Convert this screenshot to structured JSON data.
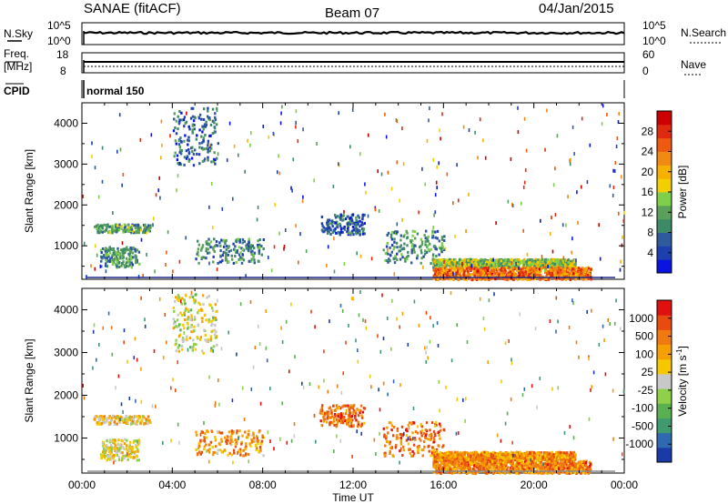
{
  "header": {
    "title": "SANAE (fitACF)",
    "beam": "Beam 07",
    "date": "04/Jan/2015"
  },
  "panels": {
    "nsky_label": "N.Sky",
    "nsky_ticks": [
      "10^5",
      "10^0"
    ],
    "nsearch_label": "N.Search",
    "nsearch_ticks": [
      "10^5",
      "10^0"
    ],
    "freq_label": "Freq.",
    "freq_unit": "[MHz]",
    "freq_ticks": [
      "18",
      "8"
    ],
    "nave_label": "Nave",
    "nave_ticks": [
      "60",
      "0"
    ],
    "cpid_label": "CPID",
    "cpid_value": "normal 150"
  },
  "chart_data": [
    {
      "type": "heatmap",
      "name": "power",
      "ylabel": "Slant Range [km]",
      "ylim": [
        180,
        4500
      ],
      "yticks": [
        1000,
        2000,
        3000,
        4000
      ],
      "xlim_hours": [
        0,
        24
      ],
      "colorbar": {
        "label": "Power [dB]",
        "range": [
          0,
          32
        ],
        "ticks": [
          "4",
          "8",
          "12",
          "16",
          "20",
          "24",
          "28"
        ],
        "colors": [
          "#0a14e0",
          "#1e3fb0",
          "#2f5a9c",
          "#3f8a66",
          "#5aa05a",
          "#7ed04a",
          "#f2d000",
          "#f5b000",
          "#f08a10",
          "#ee5a10",
          "#e02a10",
          "#cc0000"
        ]
      },
      "regions": [
        {
          "t0": 0.5,
          "t1": 3.0,
          "r0": 1350,
          "r1": 1550,
          "level": 0.35
        },
        {
          "t0": 0.8,
          "t1": 2.5,
          "r0": 500,
          "r1": 1000,
          "level": 0.3
        },
        {
          "t0": 4.0,
          "t1": 6.0,
          "r0": 3000,
          "r1": 4400,
          "level": 0.2
        },
        {
          "t0": 5.0,
          "t1": 8.0,
          "r0": 600,
          "r1": 1200,
          "level": 0.3
        },
        {
          "t0": 10.5,
          "t1": 12.5,
          "r0": 1300,
          "r1": 1800,
          "level": 0.2
        },
        {
          "t0": 13.3,
          "t1": 16.0,
          "r0": 600,
          "r1": 1400,
          "level": 0.3
        },
        {
          "t0": 15.5,
          "t1": 21.8,
          "r0": 500,
          "r1": 700,
          "level": 0.45
        },
        {
          "t0": 15.5,
          "t1": 22.5,
          "r0": 200,
          "r1": 500,
          "level": 0.75
        }
      ]
    },
    {
      "type": "heatmap",
      "name": "velocity",
      "ylabel": "Slant Range [km]",
      "xlabel": "Time UT",
      "ylim": [
        180,
        4500
      ],
      "yticks": [
        1000,
        2000,
        3000,
        4000
      ],
      "xlim_hours": [
        0,
        24
      ],
      "xticks": [
        "00:00",
        "04:00",
        "08:00",
        "12:00",
        "16:00",
        "20:00",
        "00:00"
      ],
      "colorbar": {
        "label": "Velocity [m s",
        "label_sup": "-1",
        "label_close": "]",
        "ticks": [
          "1000",
          "500",
          "100",
          "25",
          "-25",
          "-100",
          "-500",
          "-1000"
        ],
        "colors": [
          "#1a3aa8",
          "#2f6ab0",
          "#3f9a70",
          "#5ab050",
          "#8ed04a",
          "#c8c8c8",
          "#f5c800",
          "#f5a000",
          "#f07a10",
          "#e84a10",
          "#e01010"
        ]
      },
      "regions": [
        {
          "t0": 0.5,
          "t1": 3.0,
          "r0": 1350,
          "r1": 1550,
          "level": 0.6
        },
        {
          "t0": 0.8,
          "t1": 2.5,
          "r0": 500,
          "r1": 1000,
          "level": 0.55
        },
        {
          "t0": 4.0,
          "t1": 6.0,
          "r0": 3000,
          "r1": 4400,
          "level": 0.5
        },
        {
          "t0": 5.0,
          "t1": 8.0,
          "r0": 600,
          "r1": 1200,
          "level": 0.7
        },
        {
          "t0": 10.5,
          "t1": 12.5,
          "r0": 1300,
          "r1": 1800,
          "level": 0.8
        },
        {
          "t0": 13.3,
          "t1": 16.0,
          "r0": 600,
          "r1": 1400,
          "level": 0.78
        },
        {
          "t0": 15.5,
          "t1": 21.8,
          "r0": 500,
          "r1": 700,
          "level": 0.72
        },
        {
          "t0": 15.5,
          "t1": 22.5,
          "r0": 200,
          "r1": 500,
          "level": 0.75
        }
      ]
    }
  ]
}
